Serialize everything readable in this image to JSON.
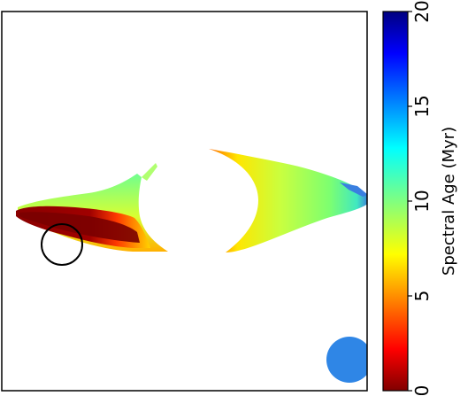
{
  "image": {
    "subject": "spectral age map",
    "colormap": "jet (reversed: red = low, blue = high)",
    "colors": {
      "background": "#ffffff",
      "frame": "#000000",
      "beam": "#2f86e6",
      "overlay_circle": "#000000"
    }
  },
  "colorbar": {
    "label": "Spectral Age (Myr)",
    "min": 0,
    "max": 20,
    "ticks": [
      "0",
      "5",
      "10",
      "15",
      "20"
    ],
    "tick_values": [
      0,
      5,
      10,
      15,
      20
    ]
  },
  "panel": {
    "has_frame": true,
    "markers": [
      {
        "name": "overlay-circle",
        "kind": "open circle"
      },
      {
        "name": "beam-ellipse",
        "kind": "filled circle"
      }
    ]
  }
}
